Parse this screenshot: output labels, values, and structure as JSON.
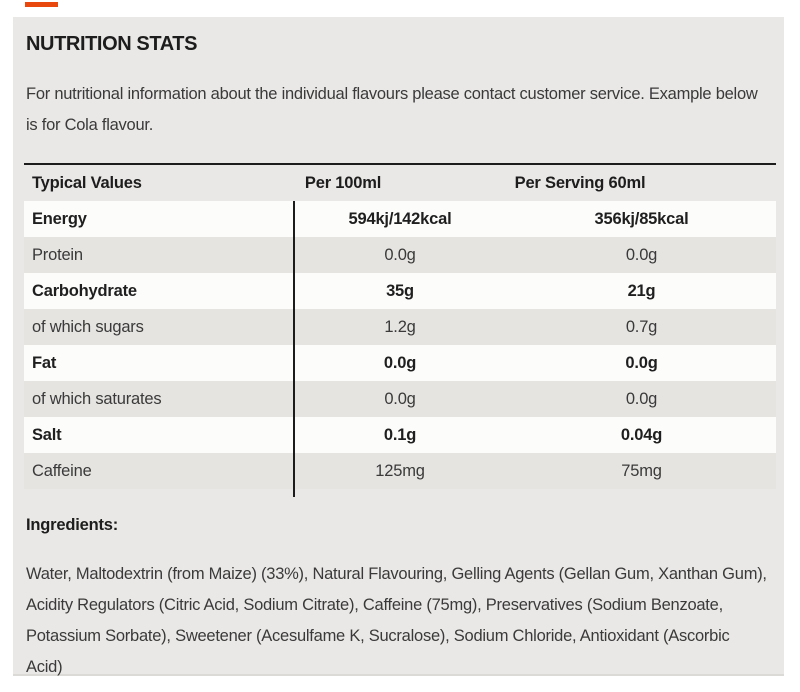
{
  "accent": {
    "color": "#e8480e"
  },
  "section": {
    "title": "NUTRITION STATS",
    "intro": "For nutritional information about the individual flavours please contact customer service. Example below is for Cola flavour."
  },
  "table": {
    "headers": [
      "Typical Values",
      "Per 100ml",
      "Per Serving 60ml"
    ],
    "rows": [
      {
        "label": "Energy",
        "per100ml": "594kj/142kcal",
        "per_serving": "356kj/85kcal",
        "bold": true
      },
      {
        "label": "Protein",
        "per100ml": "0.0g",
        "per_serving": "0.0g",
        "bold": false
      },
      {
        "label": "Carbohydrate",
        "per100ml": "35g",
        "per_serving": "21g",
        "bold": true
      },
      {
        "label": "of which sugars",
        "per100ml": "1.2g",
        "per_serving": "0.7g",
        "bold": false
      },
      {
        "label": "Fat",
        "per100ml": "0.0g",
        "per_serving": "0.0g",
        "bold": true
      },
      {
        "label": "of which saturates",
        "per100ml": "0.0g",
        "per_serving": "0.0g",
        "bold": false
      },
      {
        "label": "Salt",
        "per100ml": "0.1g",
        "per_serving": "0.04g",
        "bold": true
      },
      {
        "label": "Caffeine",
        "per100ml": "125mg",
        "per_serving": "75mg",
        "bold": false
      }
    ]
  },
  "ingredients": {
    "title": "Ingredients:",
    "text": "Water, Maltodextrin (from Maize) (33%), Natural Flavouring, Gelling Agents (Gellan Gum, Xanthan Gum), Acidity Regulators (Citric Acid, Sodium Citrate), Caffeine (75mg), Preservatives (Sodium Benzoate, Potassium Sorbate), Sweetener (Acesulfame K, Sucralose), Sodium Chloride, Antioxidant (Ascorbic Acid)"
  },
  "colors": {
    "panel_background": "#eae8e6",
    "row_white": "#fcfcfb",
    "row_alt": "#e6e4e1",
    "table_border": "#1c1c1c",
    "heading_text": "#1d1d1d",
    "body_text": "#3a3a3a",
    "accent": "#e8480e"
  }
}
